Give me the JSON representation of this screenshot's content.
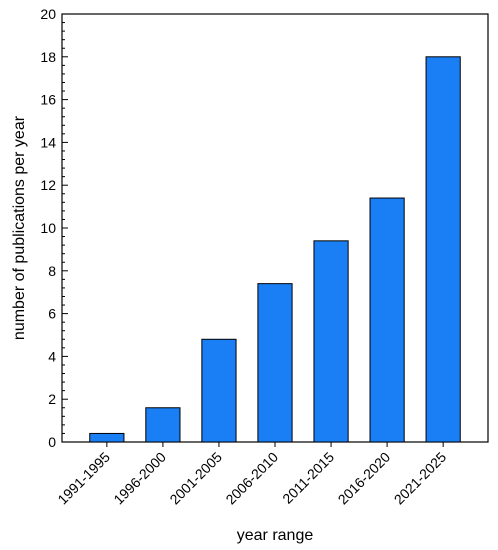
{
  "chart_data": {
    "type": "bar",
    "title": "",
    "xlabel": "year range",
    "ylabel": "number of publications per year",
    "categories": [
      "1991-1995",
      "1996-2000",
      "2001-2005",
      "2006-2010",
      "2011-2015",
      "2016-2020",
      "2021-2025"
    ],
    "values": [
      0.4,
      1.6,
      4.8,
      7.4,
      9.4,
      11.4,
      18.0
    ],
    "ylim": [
      0,
      20
    ],
    "yticks": [
      0,
      2,
      4,
      6,
      8,
      10,
      12,
      14,
      16,
      18,
      20
    ],
    "grid": false,
    "legend": "none",
    "bar_color": "#1a7ff5",
    "bar_edge_color": "#000000"
  }
}
